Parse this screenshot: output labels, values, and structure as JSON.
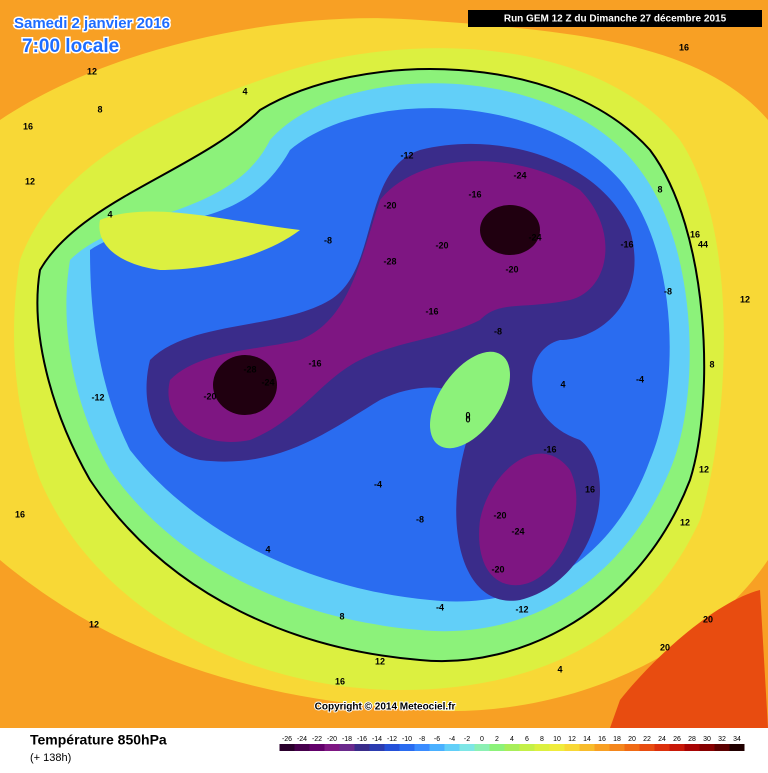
{
  "header": {
    "date": "Samedi 2 janvier 2016",
    "time": "7:00 locale",
    "run": "Run GEM 12 Z du Dimanche 27 décembre 2015"
  },
  "footer": {
    "copyright": "Copyright © 2014 Meteociel.fr",
    "variable": "Température 850hPa",
    "lead": "(+ 138h)"
  },
  "legend": {
    "ticks": [
      -26,
      -24,
      -22,
      -20,
      -18,
      -16,
      -14,
      -12,
      -10,
      -8,
      -6,
      -4,
      -2,
      0,
      2,
      4,
      6,
      8,
      10,
      12,
      14,
      16,
      18,
      20,
      22,
      24,
      26,
      28,
      30,
      32,
      34
    ],
    "colors": [
      "#2a002c",
      "#46004c",
      "#62006a",
      "#7e1682",
      "#6a2a8c",
      "#3a2c8a",
      "#2c3cb0",
      "#2450d8",
      "#2a6cf0",
      "#3a8cff",
      "#4ab0ff",
      "#62cff8",
      "#7ee6e6",
      "#8cf0b4",
      "#8cf27a",
      "#a8ee5a",
      "#c4f048",
      "#dcf040",
      "#f0ec3c",
      "#f8d836",
      "#f8bc2c",
      "#f8a024",
      "#f4861c",
      "#f06a14",
      "#e84c10",
      "#dc300c",
      "#c81808",
      "#a80404",
      "#860000",
      "#5c0000",
      "#200000"
    ]
  },
  "map": {
    "contour_labels": [
      16,
      12,
      8,
      4,
      16,
      12,
      4,
      -8,
      -12,
      -20,
      -24,
      -28,
      -20,
      -16,
      -24,
      -20,
      -16,
      -8,
      -4,
      0,
      4,
      8,
      12,
      16,
      -28,
      -24,
      -20,
      -12,
      -16,
      -20,
      -24,
      -16,
      -20,
      -12,
      -8,
      -4,
      4,
      8,
      12,
      16,
      20,
      16,
      12,
      -8,
      -16,
      44,
      12,
      8,
      4,
      -4,
      0,
      12,
      16,
      20
    ]
  }
}
